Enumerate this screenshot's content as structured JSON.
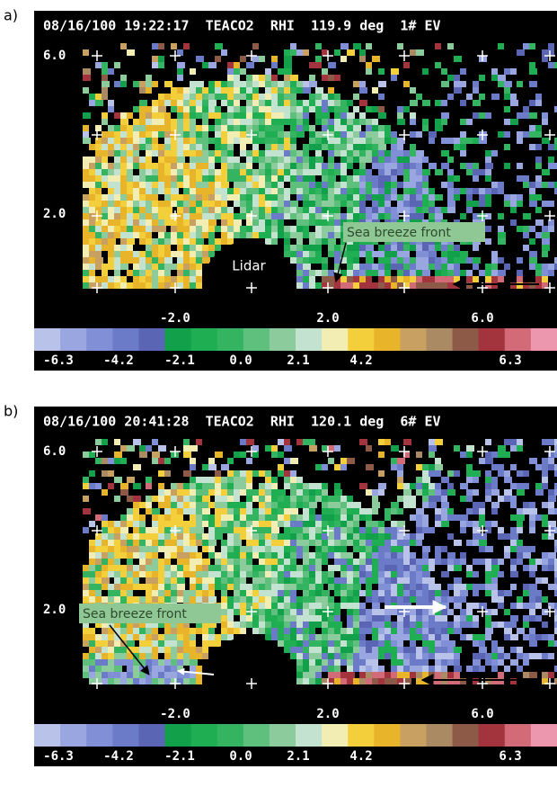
{
  "panels": [
    {
      "label": "a)",
      "header": "08/16/100 19:22:17  TEACO2  RHI  119.9 deg  1# EV",
      "y_tick_labels": [
        "6.0",
        "2.0"
      ],
      "x_tick_labels": [
        "-2.0",
        "2.0",
        "6.0"
      ],
      "annotations": [
        "Lidar",
        "Sea breeze front"
      ]
    },
    {
      "label": "b)",
      "header": "08/16/100 20:41:28  TEACO2  RHI  120.1 deg  6# EV",
      "y_tick_labels": [
        "6.0",
        "2.0"
      ],
      "x_tick_labels": [
        "-2.0",
        "2.0",
        "6.0"
      ],
      "annotations": [
        "Sea breeze front"
      ]
    }
  ],
  "colorbar": {
    "colors": [
      "#b9c3ea",
      "#9aa6e0",
      "#8190d6",
      "#6c7bc8",
      "#5a66b4",
      "#12a04a",
      "#1fae52",
      "#34b461",
      "#5fbf7d",
      "#8ccc9c",
      "#c3e2cf",
      "#f1edb3",
      "#f3cf3c",
      "#e8b52a",
      "#c8a062",
      "#a98a62",
      "#8c5a46",
      "#a3333c",
      "#d36a78",
      "#ec97ad"
    ],
    "labels": [
      "-6.3",
      "-4.2",
      "-2.1",
      "0.0",
      "2.1",
      "4.2",
      "6.3"
    ]
  }
}
